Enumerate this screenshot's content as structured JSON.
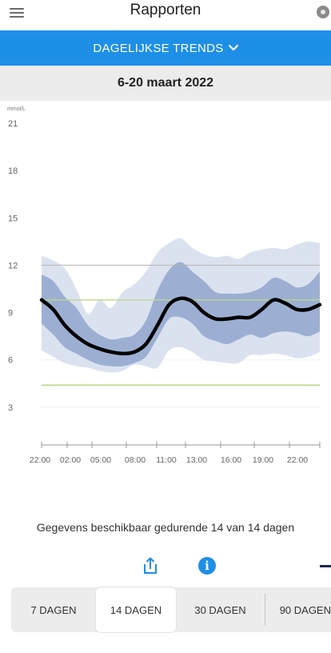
{
  "header": {
    "title": "Rapporten",
    "menu_icon": "hamburger-menu-icon",
    "sensor_icon": "sensor-icon"
  },
  "report_selector": {
    "label": "DAGELIJKSE TRENDS",
    "icon": "chevron-down-icon",
    "color": "#1e8fe6"
  },
  "date_range": "6-20 maart 2022",
  "chart_data": {
    "type": "area",
    "ylabel": "mmol/L",
    "ylim": [
      0,
      21
    ],
    "yticks": [
      "21",
      "18",
      "15",
      "12",
      "9",
      "6",
      "3"
    ],
    "xticks": [
      "22:00",
      "02:00",
      "05:00",
      "08:00",
      "11:00",
      "13:00",
      "16:00",
      "19:00",
      "22:00"
    ],
    "target_range": {
      "low": 4.4,
      "high": 9.8,
      "color": "#b9d98a"
    },
    "reference_line": 12,
    "x": [
      0,
      1,
      2,
      3,
      4,
      5,
      6,
      7,
      8,
      9,
      10,
      11,
      12,
      13,
      14,
      15,
      16,
      17,
      18,
      19,
      20,
      21,
      22,
      23,
      24
    ],
    "series": [
      {
        "values": [
          9.8,
          9.2,
          8.2,
          7.5,
          7.0,
          6.7,
          6.5,
          6.4,
          6.5,
          7.0,
          8.2,
          9.5,
          9.9,
          9.7,
          9.0,
          8.6,
          8.6,
          8.7,
          8.7,
          9.2,
          9.8,
          9.6,
          9.2,
          9.2,
          9.5
        ]
      }
    ],
    "bands": {
      "inner_low": [
        8.3,
        7.6,
        6.8,
        6.4,
        6.0,
        5.7,
        5.6,
        5.6,
        5.8,
        6.2,
        7.4,
        8.6,
        8.7,
        8.3,
        7.5,
        7.2,
        7.0,
        7.3,
        7.6,
        7.4,
        7.7,
        7.8,
        7.7,
        7.5,
        7.8
      ],
      "inner_high": [
        11.4,
        11.0,
        10.0,
        9.3,
        8.2,
        7.6,
        7.3,
        7.4,
        7.6,
        8.5,
        10.4,
        11.7,
        12.2,
        11.6,
        11.0,
        10.3,
        10.2,
        10.2,
        10.3,
        10.6,
        11.2,
        11.0,
        10.6,
        10.8,
        11.6
      ],
      "outer_low": [
        6.6,
        6.2,
        5.8,
        5.6,
        5.5,
        5.3,
        5.2,
        5.3,
        5.7,
        5.6,
        5.5,
        6.6,
        6.8,
        6.5,
        6.0,
        5.9,
        5.8,
        5.8,
        6.3,
        6.3,
        6.4,
        6.3,
        6.1,
        6.2,
        6.5
      ],
      "outer_high": [
        12.6,
        12.3,
        11.8,
        10.5,
        8.9,
        9.8,
        9.3,
        10.3,
        10.8,
        11.6,
        12.8,
        13.4,
        13.7,
        13.1,
        12.7,
        12.5,
        12.6,
        12.4,
        12.8,
        13.0,
        13.1,
        13.0,
        13.3,
        13.5,
        13.4
      ]
    },
    "colors": {
      "median": "#000000",
      "inner_band": "#9cafd3",
      "outer_band": "#dbe2ef"
    }
  },
  "availability_text": "Gegevens beschikbaar gedurende 14 van 14 dagen",
  "actions": {
    "share_icon": "share-icon",
    "info_icon": "info-icon",
    "info_glyph": "i",
    "info_color": "#1e8fe6"
  },
  "period_tabs": [
    {
      "label": "7 DAGEN",
      "active": false
    },
    {
      "label": "14 DAGEN",
      "active": true
    },
    {
      "label": "30 DAGEN",
      "active": false
    },
    {
      "label": "90 DAGEN",
      "active": false
    }
  ]
}
